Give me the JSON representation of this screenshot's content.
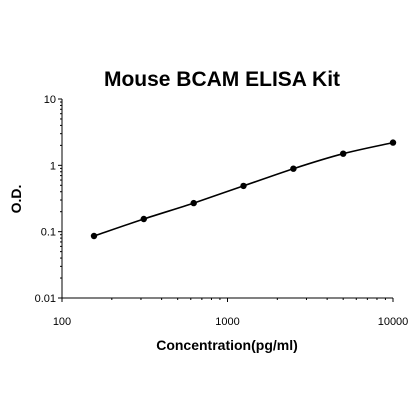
{
  "chart_data": {
    "type": "line",
    "title": "Mouse BCAM ELISA Kit",
    "xlabel": "Concentration(pg/ml)",
    "ylabel": "O.D.",
    "x_scale": "log",
    "y_scale": "log",
    "xlim": [
      100,
      10000
    ],
    "ylim": [
      0.01,
      10
    ],
    "x_ticks": [
      "100",
      "1000",
      "10000"
    ],
    "y_ticks": [
      "0.01",
      "0.1",
      "1",
      "10"
    ],
    "grid": false,
    "legend": "none",
    "series": [
      {
        "x": [
          156,
          312,
          625,
          1250,
          2500,
          5000,
          10000
        ],
        "y": [
          0.086,
          0.155,
          0.27,
          0.49,
          0.89,
          1.5,
          2.2
        ]
      }
    ],
    "colors": {
      "line": "#000000",
      "marker": "#000000",
      "axis": "#000000"
    }
  }
}
